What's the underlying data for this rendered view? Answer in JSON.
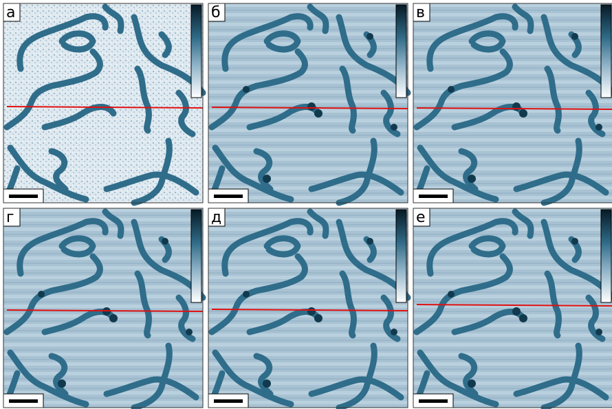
{
  "panels": [
    {
      "label": "а"
    },
    {
      "label": "б"
    },
    {
      "label": "в"
    },
    {
      "label": "г"
    },
    {
      "label": "д"
    },
    {
      "label": "е"
    }
  ]
}
